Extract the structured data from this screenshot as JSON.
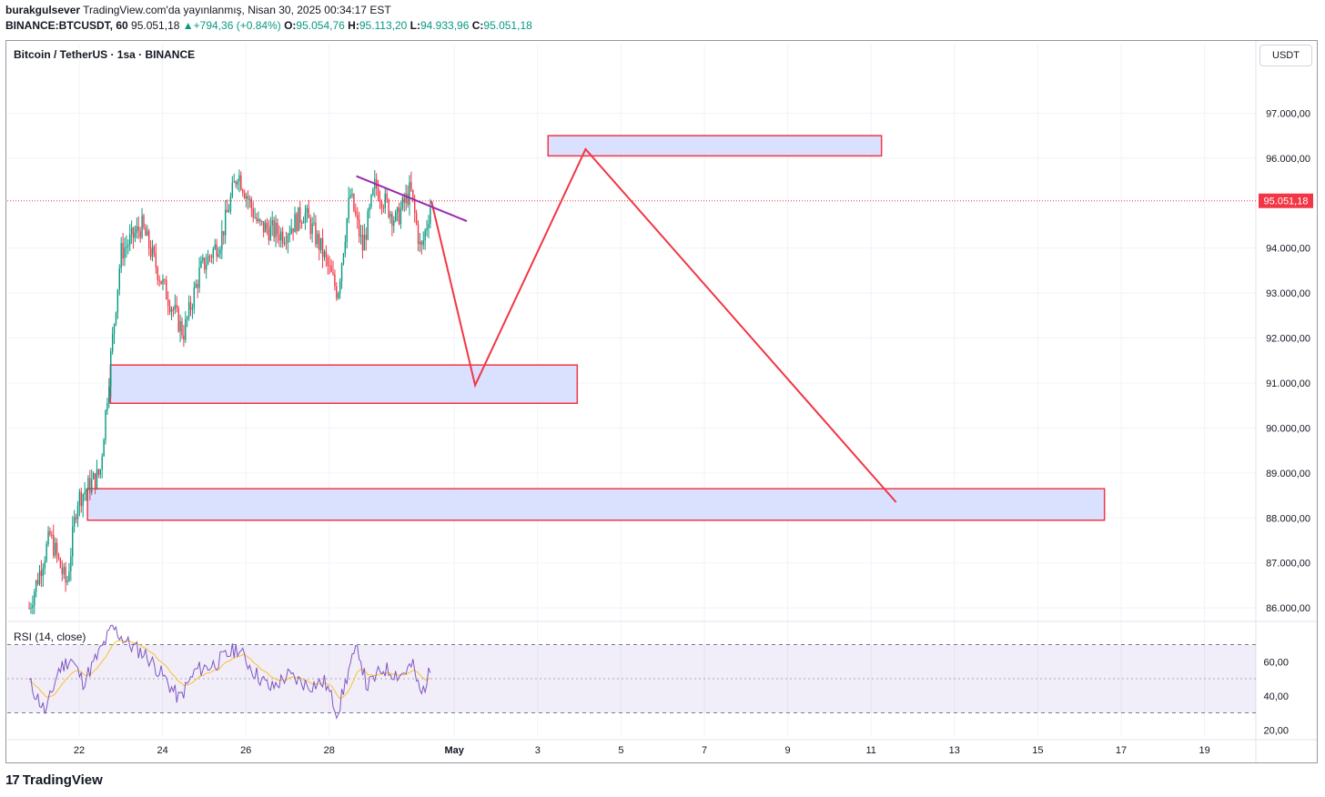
{
  "header": {
    "author": "burakgulsever",
    "published": "TradingView.com'da yayınlanmış, Nisan 30, 2025 00:34:17 EST",
    "symbol_line": "BINANCE:BTCUSDT, 60",
    "last": "95.051,18",
    "change": "+794,36 (+0.84%)",
    "o_label": "O:",
    "o_value": "95.054,76",
    "h_label": "H:",
    "h_value": "95.113,20",
    "l_label": "L:",
    "l_value": "94.933,96",
    "c_label": "C:",
    "c_value": "95.051,18"
  },
  "pane": {
    "title": "Bitcoin / TetherUS · 1sa · BINANCE",
    "currency_button": "USDT",
    "rsi_label": "RSI (14, close)"
  },
  "footer": {
    "brand": "TradingView",
    "logo": "17"
  },
  "colors": {
    "up": "#089981",
    "down": "#f23645",
    "zone_fill": "#d6deff",
    "zone_border": "#f23645",
    "path": "#f23645",
    "trendline": "#9c27b0",
    "rsi": "#7e57c2",
    "rsi_ma": "#fbc02d",
    "price_tag": "#f23645"
  },
  "chart_data": {
    "type": "candlestick",
    "title": "Bitcoin / TetherUS · 1sa · BINANCE",
    "ylim": [
      85700,
      98100
    ],
    "y_ticks": [
      {
        "v": 97000,
        "label": "97.000,00"
      },
      {
        "v": 96000,
        "label": "96.000,00"
      },
      {
        "v": 94000,
        "label": "94.000,00"
      },
      {
        "v": 93000,
        "label": "93.000,00"
      },
      {
        "v": 92000,
        "label": "92.000,00"
      },
      {
        "v": 91000,
        "label": "91.000,00"
      },
      {
        "v": 90000,
        "label": "90.000,00"
      },
      {
        "v": 89000,
        "label": "89.000,00"
      },
      {
        "v": 88000,
        "label": "88.000,00"
      },
      {
        "v": 87000,
        "label": "87.000,00"
      },
      {
        "v": 86000,
        "label": "86.000,00"
      }
    ],
    "x_ticks": [
      {
        "d": 22,
        "label": "22"
      },
      {
        "d": 24,
        "label": "24"
      },
      {
        "d": 26,
        "label": "26"
      },
      {
        "d": 28,
        "label": "28"
      },
      {
        "d": 31,
        "label": "May"
      },
      {
        "d": 33,
        "label": "3"
      },
      {
        "d": 35,
        "label": "5"
      },
      {
        "d": 37,
        "label": "7"
      },
      {
        "d": 39,
        "label": "9"
      },
      {
        "d": 41,
        "label": "11"
      },
      {
        "d": 43,
        "label": "13"
      },
      {
        "d": 45,
        "label": "15"
      },
      {
        "d": 47,
        "label": "17"
      },
      {
        "d": 49,
        "label": "19"
      }
    ],
    "current_price": 95051.18,
    "current_price_label": "95.051,18",
    "price_path": [
      {
        "d": 20.8,
        "v": 86000
      },
      {
        "d": 21.3,
        "v": 87600
      },
      {
        "d": 21.7,
        "v": 86500
      },
      {
        "d": 21.95,
        "v": 88400
      },
      {
        "d": 22.5,
        "v": 89000
      },
      {
        "d": 22.75,
        "v": 91500
      },
      {
        "d": 23.0,
        "v": 93900
      },
      {
        "d": 23.5,
        "v": 94500
      },
      {
        "d": 24.0,
        "v": 93200
      },
      {
        "d": 24.5,
        "v": 92100
      },
      {
        "d": 24.9,
        "v": 93500
      },
      {
        "d": 25.4,
        "v": 94200
      },
      {
        "d": 25.8,
        "v": 95700
      },
      {
        "d": 26.3,
        "v": 94500
      },
      {
        "d": 26.9,
        "v": 94300
      },
      {
        "d": 27.4,
        "v": 94800
      },
      {
        "d": 27.8,
        "v": 94000
      },
      {
        "d": 28.2,
        "v": 93000
      },
      {
        "d": 28.5,
        "v": 95200
      },
      {
        "d": 28.8,
        "v": 94000
      },
      {
        "d": 29.1,
        "v": 95400
      },
      {
        "d": 29.6,
        "v": 94600
      },
      {
        "d": 29.95,
        "v": 95300
      },
      {
        "d": 30.2,
        "v": 93900
      },
      {
        "d": 30.45,
        "v": 95050
      }
    ],
    "zones": [
      {
        "d1": 33.25,
        "d2": 41.25,
        "top": 96500,
        "bottom": 96050
      },
      {
        "d1": 22.75,
        "d2": 33.95,
        "top": 91400,
        "bottom": 90550
      },
      {
        "d1": 22.2,
        "d2": 46.6,
        "top": 88650,
        "bottom": 87950
      }
    ],
    "projection": [
      {
        "d": 30.45,
        "v": 95050
      },
      {
        "d": 31.5,
        "v": 90950
      },
      {
        "d": 34.15,
        "v": 96200
      },
      {
        "d": 41.6,
        "v": 88350
      }
    ],
    "trendline": [
      {
        "d": 28.65,
        "v": 95600
      },
      {
        "d": 31.3,
        "v": 94600
      }
    ],
    "rsi": {
      "label": "RSI (14, close)",
      "ylim": [
        18,
        82
      ],
      "y_ticks": [
        {
          "v": 60,
          "label": "60,00"
        },
        {
          "v": 40,
          "label": "40,00"
        },
        {
          "v": 20,
          "label": "20,00"
        }
      ],
      "upper_band": 70,
      "lower_band": 30,
      "mid_band": 50,
      "path": [
        {
          "d": 20.8,
          "v": 48
        },
        {
          "d": 21.2,
          "v": 30
        },
        {
          "d": 21.5,
          "v": 55
        },
        {
          "d": 21.8,
          "v": 62
        },
        {
          "d": 22.1,
          "v": 48
        },
        {
          "d": 22.5,
          "v": 66
        },
        {
          "d": 22.8,
          "v": 80
        },
        {
          "d": 23.2,
          "v": 70
        },
        {
          "d": 23.6,
          "v": 64
        },
        {
          "d": 24.0,
          "v": 52
        },
        {
          "d": 24.4,
          "v": 38
        },
        {
          "d": 24.8,
          "v": 55
        },
        {
          "d": 25.2,
          "v": 58
        },
        {
          "d": 25.8,
          "v": 68
        },
        {
          "d": 26.2,
          "v": 54
        },
        {
          "d": 26.6,
          "v": 44
        },
        {
          "d": 27.0,
          "v": 52
        },
        {
          "d": 27.5,
          "v": 46
        },
        {
          "d": 27.9,
          "v": 48
        },
        {
          "d": 28.2,
          "v": 30
        },
        {
          "d": 28.5,
          "v": 58
        },
        {
          "d": 28.7,
          "v": 68
        },
        {
          "d": 28.9,
          "v": 45
        },
        {
          "d": 29.3,
          "v": 56
        },
        {
          "d": 29.7,
          "v": 52
        },
        {
          "d": 30.0,
          "v": 58
        },
        {
          "d": 30.2,
          "v": 40
        },
        {
          "d": 30.45,
          "v": 56
        }
      ]
    }
  }
}
